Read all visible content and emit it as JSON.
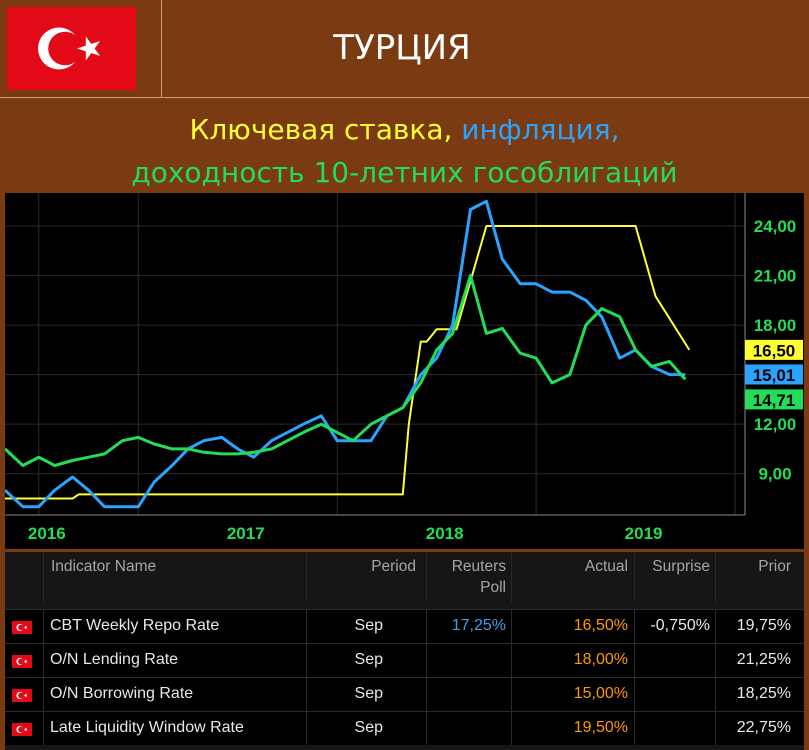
{
  "header": {
    "title": "ТУРЦИЯ",
    "subtitle": {
      "part1": "Ключевая ставка, ",
      "part2": "инфляция,",
      "part3": "доходность 10-летних гособлигаций"
    }
  },
  "colors": {
    "rate": "#ffff33",
    "inflation": "#2aa4ff",
    "bond": "#22dd55",
    "orange": "#ff9900",
    "poll": "#3f9fe8",
    "flag": "#e30a17"
  },
  "chart_data": {
    "type": "line",
    "ylim": [
      6.5,
      26
    ],
    "y_ticks": [
      "9,00",
      "12,00",
      "15,00",
      "18,00",
      "21,00",
      "24,00"
    ],
    "x_ticks": [
      "2016",
      "2017",
      "2018",
      "2019"
    ],
    "series": [
      {
        "key": "rate",
        "x": [
          2015.83,
          2016.17,
          2016.2,
          2016.5,
          2016.8,
          2017.0,
          2017.5,
          2017.83,
          2017.86,
          2017.92,
          2017.95,
          2018.0,
          2018.08,
          2018.1,
          2018.25,
          2018.45,
          2018.5,
          2018.75,
          2018.92,
          2019.0,
          2019.1,
          2019.27
        ],
        "y": [
          7.5,
          7.5,
          7.75,
          7.75,
          7.75,
          7.75,
          7.75,
          7.75,
          12.0,
          17.0,
          17.0,
          17.75,
          17.75,
          17.75,
          24.0,
          24.0,
          24.0,
          24.0,
          24.0,
          24.0,
          19.75,
          16.5
        ]
      },
      {
        "key": "inflation",
        "x": [
          2015.83,
          2015.92,
          2016.0,
          2016.08,
          2016.17,
          2016.25,
          2016.33,
          2016.42,
          2016.5,
          2016.58,
          2016.67,
          2016.75,
          2016.83,
          2016.92,
          2017.0,
          2017.08,
          2017.17,
          2017.25,
          2017.33,
          2017.42,
          2017.5,
          2017.58,
          2017.67,
          2017.75,
          2017.83,
          2017.92,
          2018.0,
          2018.08,
          2018.17,
          2018.25,
          2018.33,
          2018.42,
          2018.5,
          2018.58,
          2018.67,
          2018.75,
          2018.83,
          2018.92,
          2019.0,
          2019.08,
          2019.17,
          2019.25
        ],
        "y": [
          8.0,
          7.0,
          7.0,
          8.0,
          8.8,
          8.0,
          7.0,
          7.0,
          7.0,
          8.5,
          9.5,
          10.5,
          11.0,
          11.2,
          10.5,
          10.0,
          11.0,
          11.5,
          12.0,
          12.5,
          11.0,
          11.0,
          11.0,
          12.5,
          13.0,
          15.0,
          16.0,
          18.0,
          25.0,
          25.5,
          22.0,
          20.5,
          20.5,
          20.0,
          20.0,
          19.5,
          18.5,
          16.0,
          16.5,
          15.5,
          15.01,
          15.0
        ],
        "last_label": "15,01"
      },
      {
        "key": "bond",
        "x": [
          2015.83,
          2015.92,
          2016.0,
          2016.08,
          2016.17,
          2016.25,
          2016.33,
          2016.42,
          2016.5,
          2016.58,
          2016.67,
          2016.75,
          2016.83,
          2016.92,
          2017.0,
          2017.08,
          2017.17,
          2017.25,
          2017.33,
          2017.42,
          2017.5,
          2017.58,
          2017.67,
          2017.75,
          2017.83,
          2017.92,
          2018.0,
          2018.08,
          2018.17,
          2018.25,
          2018.33,
          2018.42,
          2018.5,
          2018.58,
          2018.67,
          2018.75,
          2018.83,
          2018.92,
          2019.0,
          2019.08,
          2019.17,
          2019.25
        ],
        "y": [
          10.5,
          9.5,
          10.0,
          9.5,
          9.8,
          10.0,
          10.2,
          11.0,
          11.2,
          10.8,
          10.5,
          10.5,
          10.3,
          10.2,
          10.2,
          10.3,
          10.5,
          11.0,
          11.5,
          12.0,
          11.5,
          11.0,
          12.0,
          12.5,
          13.0,
          14.5,
          16.5,
          17.5,
          21.0,
          17.5,
          17.8,
          16.3,
          16.0,
          14.5,
          15.0,
          18.0,
          19.0,
          18.5,
          16.5,
          15.5,
          15.8,
          14.71
        ],
        "last_label": "14,71"
      }
    ],
    "rate_last_label": "16,50"
  },
  "table": {
    "headers": {
      "name": "Indicator Name",
      "period": "Period",
      "poll1": "Reuters",
      "poll2": "Poll",
      "actual": "Actual",
      "surprise": "Surprise",
      "prior": "Prior"
    },
    "rows": [
      {
        "name": "CBT Weekly Repo Rate",
        "period": "Sep",
        "poll": "17,25%",
        "actual": "16,50%",
        "surprise": "-0,750%",
        "prior": "19,75%"
      },
      {
        "name": "O/N Lending Rate",
        "period": "Sep",
        "poll": "",
        "actual": "18,00%",
        "surprise": "",
        "prior": "21,25%"
      },
      {
        "name": "O/N Borrowing Rate",
        "period": "Sep",
        "poll": "",
        "actual": "15,00%",
        "surprise": "",
        "prior": "18,25%"
      },
      {
        "name": "Late Liquidity Window Rate",
        "period": "Sep",
        "poll": "",
        "actual": "19,50%",
        "surprise": "",
        "prior": "22,75%"
      }
    ]
  }
}
